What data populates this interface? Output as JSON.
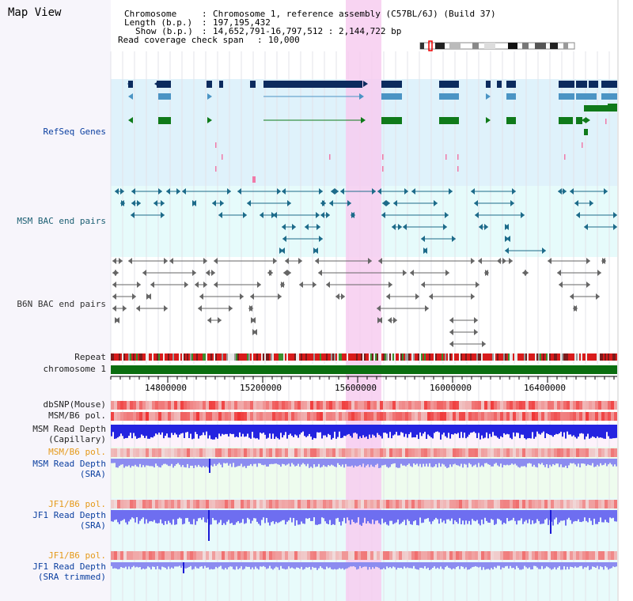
{
  "header": {
    "title": "Map View",
    "chromosome_label": "Chromosome",
    "chromosome_value": "Chromosome 1, reference assembly (C57BL/6J) (Build 37)",
    "length_label": "Length (b.p.)",
    "length_value": "197,195,432",
    "show_label": "Show (b.p.)",
    "show_value": "14,652,791-16,797,512 : 2,144,722 bp",
    "coverage_label": "Read coverage check span",
    "coverage_value": "10,000"
  },
  "tracks": {
    "refseq": "RefSeq Genes",
    "msm_bac": "MSM BAC end pairs",
    "b6n_bac": "B6N BAC end pairs",
    "repeat": "Repeat",
    "chromosome": "chromosome 1",
    "dbsnp": "dbSNP(Mouse)",
    "msm_b6_pol": "MSM/B6 pol.",
    "msm_read_depth_cap_1": "MSM Read Depth",
    "msm_read_depth_cap_2": "(Capillary)",
    "msm_b6_pol_2": "MSM/B6 pol.",
    "msm_read_depth_sra_1": "MSM Read Depth",
    "msm_read_depth_sra_2": "(SRA)",
    "jf1_b6_pol": "JF1/B6 pol.",
    "jf1_read_depth_sra_1": "JF1 Read Depth",
    "jf1_read_depth_sra_2": "(SRA)",
    "jf1_b6_pol_2": "JF1/B6 pol.",
    "jf1_read_depth_trim_1": "JF1 Read Depth",
    "jf1_read_depth_trim_2": "(SRA trimmed)"
  },
  "axis": {
    "ticks": [
      "14800000",
      "15200000",
      "15600000",
      "16000000",
      "16400000"
    ]
  },
  "colors": {
    "refseq_bg": "#dff2fb",
    "bac_bg": "#e6fbfb",
    "highlight": "#f7cdf0",
    "dark_navy": "#0c2b5e",
    "mid_blue": "#4b94c4",
    "gene_green": "#0f7a1a",
    "chromosome_green": "#0b6e10"
  }
}
